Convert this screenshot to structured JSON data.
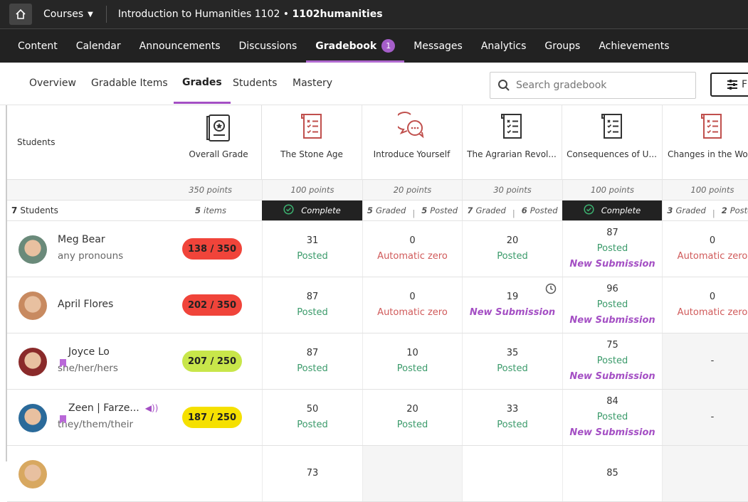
{
  "topbar": {
    "courses_label": "Courses",
    "course_title": "Introduction to Humanities 1102 • ",
    "course_code": "1102humanities"
  },
  "nav": {
    "items": [
      "Content",
      "Calendar",
      "Announcements",
      "Discussions",
      "Gradebook",
      "Messages",
      "Analytics",
      "Groups",
      "Achievements"
    ],
    "active": "Gradebook",
    "gradebook_badge": "1"
  },
  "subnav": {
    "tabs": [
      "Overview",
      "Gradable Items",
      "Grades",
      "Students",
      "Mastery"
    ],
    "active": "Grades",
    "search_placeholder": "Search gradebook",
    "filter_label": "F"
  },
  "grid": {
    "students_header": "Students",
    "student_count_num": "7",
    "student_count_label": "Students",
    "overall": {
      "title": "Overall Grade",
      "points": "350 points",
      "items_num": "5",
      "items_label": "items"
    },
    "columns": [
      {
        "title": "The Stone Age",
        "icon": "assignment-icon",
        "icon_color": "#c0504d",
        "points": "100 points",
        "status": "complete",
        "status_label": "Complete"
      },
      {
        "title": "Introduce Yourself",
        "icon": "discussion-icon",
        "icon_color": "#c0504d",
        "points": "20 points",
        "graded": "5",
        "posted": "5"
      },
      {
        "title": "The Agrarian Revol...",
        "icon": "assignment-icon",
        "icon_color": "#333333",
        "points": "30 points",
        "graded": "7",
        "posted": "6"
      },
      {
        "title": "Consequences of U...",
        "icon": "assignment-icon",
        "icon_color": "#333333",
        "points": "100 points",
        "status": "complete",
        "status_label": "Complete"
      },
      {
        "title": "Changes in the Wo...",
        "icon": "assignment-icon",
        "icon_color": "#c0504d",
        "points": "100 points",
        "graded": "3",
        "posted": "2"
      }
    ],
    "graded_label": "Graded",
    "posted_label": "Posted",
    "students": [
      {
        "name": "Meg Bear",
        "pronouns": "any pronouns",
        "grade": "138 / 350",
        "grade_color": "#f0443a",
        "avatar_color": "#6a8a7a",
        "cells": [
          {
            "v": "31",
            "s": "Posted"
          },
          {
            "v": "0",
            "s": "Automatic zero"
          },
          {
            "v": "20",
            "s": "Posted"
          },
          {
            "v": "87",
            "s": "Posted",
            "n": "New Submission"
          },
          {
            "v": "0",
            "s": "Automatic zero"
          }
        ]
      },
      {
        "name": "April Flores",
        "pronouns": "",
        "grade": "202 / 350",
        "grade_color": "#f0443a",
        "avatar_color": "#c88a60",
        "cells": [
          {
            "v": "87",
            "s": "Posted"
          },
          {
            "v": "0",
            "s": "Automatic zero"
          },
          {
            "v": "19",
            "n": "New Submission",
            "clock": true
          },
          {
            "v": "96",
            "s": "Posted",
            "n": "New Submission"
          },
          {
            "v": "0",
            "s": "Automatic zero"
          }
        ]
      },
      {
        "name": "Joyce Lo",
        "pronouns": "she/her/hers",
        "grade": "207 / 250",
        "grade_color": "#c8e64a",
        "avatar_color": "#8a2a2a",
        "flag": true,
        "cells": [
          {
            "v": "87",
            "s": "Posted"
          },
          {
            "v": "10",
            "s": "Posted"
          },
          {
            "v": "35",
            "s": "Posted"
          },
          {
            "v": "75",
            "s": "Posted",
            "n": "New Submission"
          },
          {
            "v": "-",
            "empty": true
          }
        ]
      },
      {
        "name": "Zeen | Farze...",
        "pronouns": "they/them/their",
        "grade": "187 / 250",
        "grade_color": "#f5e000",
        "avatar_color": "#2a6a9a",
        "flag": true,
        "audio": true,
        "cells": [
          {
            "v": "50",
            "s": "Posted"
          },
          {
            "v": "20",
            "s": "Posted"
          },
          {
            "v": "33",
            "s": "Posted"
          },
          {
            "v": "84",
            "s": "Posted",
            "n": "New Submission"
          },
          {
            "v": "-",
            "empty": true
          }
        ]
      },
      {
        "name": "",
        "pronouns": "",
        "grade": "",
        "grade_color": "#f5e000",
        "avatar_color": "#d8a860",
        "cells": [
          {
            "v": "73"
          },
          {
            "v": "",
            "empty": true
          },
          {
            "v": ""
          },
          {
            "v": "85"
          },
          {
            "v": "",
            "empty": true
          }
        ]
      }
    ]
  }
}
